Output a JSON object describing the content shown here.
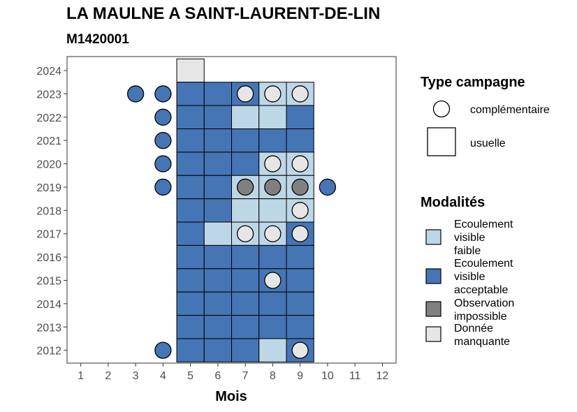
{
  "chart_data": {
    "type": "heatmap",
    "title": "LA MAULNE A SAINT-LAURENT-DE-LIN",
    "subtitle": "M1420001",
    "xlabel": "Mois",
    "ylabel": "",
    "x_ticks": [
      1,
      2,
      3,
      4,
      5,
      6,
      7,
      8,
      9,
      10,
      11,
      12
    ],
    "y_ticks": [
      2012,
      2013,
      2014,
      2015,
      2016,
      2017,
      2018,
      2019,
      2020,
      2021,
      2022,
      2023,
      2024
    ],
    "xlim": [
      0.5,
      12.5
    ],
    "ylim": [
      2011.45,
      2024.6
    ],
    "grid": false,
    "modalites": {
      "faible": {
        "label": "Ecoulement visible faible",
        "color": "#bdd7e7"
      },
      "acceptable": {
        "label": "Ecoulement visible acceptable",
        "color": "#4575b4"
      },
      "impossible": {
        "label": "Observation impossible",
        "color": "#808080"
      },
      "manquante": {
        "label": "Donnée manquante",
        "color": "#e6e6e6"
      }
    },
    "usuelle": [
      {
        "month": 5,
        "year": 2024,
        "modalite": "manquante"
      },
      {
        "month": 5,
        "year": 2023,
        "modalite": "acceptable"
      },
      {
        "month": 6,
        "year": 2023,
        "modalite": "acceptable"
      },
      {
        "month": 7,
        "year": 2023,
        "modalite": "acceptable"
      },
      {
        "month": 8,
        "year": 2023,
        "modalite": "faible"
      },
      {
        "month": 9,
        "year": 2023,
        "modalite": "faible"
      },
      {
        "month": 5,
        "year": 2022,
        "modalite": "acceptable"
      },
      {
        "month": 6,
        "year": 2022,
        "modalite": "acceptable"
      },
      {
        "month": 7,
        "year": 2022,
        "modalite": "faible"
      },
      {
        "month": 8,
        "year": 2022,
        "modalite": "faible"
      },
      {
        "month": 9,
        "year": 2022,
        "modalite": "acceptable"
      },
      {
        "month": 5,
        "year": 2021,
        "modalite": "acceptable"
      },
      {
        "month": 6,
        "year": 2021,
        "modalite": "acceptable"
      },
      {
        "month": 7,
        "year": 2021,
        "modalite": "acceptable"
      },
      {
        "month": 8,
        "year": 2021,
        "modalite": "acceptable"
      },
      {
        "month": 9,
        "year": 2021,
        "modalite": "acceptable"
      },
      {
        "month": 5,
        "year": 2020,
        "modalite": "acceptable"
      },
      {
        "month": 6,
        "year": 2020,
        "modalite": "acceptable"
      },
      {
        "month": 7,
        "year": 2020,
        "modalite": "acceptable"
      },
      {
        "month": 8,
        "year": 2020,
        "modalite": "faible"
      },
      {
        "month": 9,
        "year": 2020,
        "modalite": "faible"
      },
      {
        "month": 5,
        "year": 2019,
        "modalite": "acceptable"
      },
      {
        "month": 6,
        "year": 2019,
        "modalite": "acceptable"
      },
      {
        "month": 7,
        "year": 2019,
        "modalite": "faible"
      },
      {
        "month": 8,
        "year": 2019,
        "modalite": "faible"
      },
      {
        "month": 9,
        "year": 2019,
        "modalite": "faible"
      },
      {
        "month": 5,
        "year": 2018,
        "modalite": "acceptable"
      },
      {
        "month": 6,
        "year": 2018,
        "modalite": "acceptable"
      },
      {
        "month": 7,
        "year": 2018,
        "modalite": "faible"
      },
      {
        "month": 8,
        "year": 2018,
        "modalite": "faible"
      },
      {
        "month": 9,
        "year": 2018,
        "modalite": "faible"
      },
      {
        "month": 5,
        "year": 2017,
        "modalite": "acceptable"
      },
      {
        "month": 6,
        "year": 2017,
        "modalite": "faible"
      },
      {
        "month": 7,
        "year": 2017,
        "modalite": "faible"
      },
      {
        "month": 8,
        "year": 2017,
        "modalite": "faible"
      },
      {
        "month": 9,
        "year": 2017,
        "modalite": "acceptable"
      },
      {
        "month": 5,
        "year": 2016,
        "modalite": "acceptable"
      },
      {
        "month": 6,
        "year": 2016,
        "modalite": "acceptable"
      },
      {
        "month": 7,
        "year": 2016,
        "modalite": "acceptable"
      },
      {
        "month": 8,
        "year": 2016,
        "modalite": "acceptable"
      },
      {
        "month": 9,
        "year": 2016,
        "modalite": "acceptable"
      },
      {
        "month": 5,
        "year": 2015,
        "modalite": "acceptable"
      },
      {
        "month": 6,
        "year": 2015,
        "modalite": "acceptable"
      },
      {
        "month": 7,
        "year": 2015,
        "modalite": "acceptable"
      },
      {
        "month": 8,
        "year": 2015,
        "modalite": "acceptable"
      },
      {
        "month": 9,
        "year": 2015,
        "modalite": "acceptable"
      },
      {
        "month": 5,
        "year": 2014,
        "modalite": "acceptable"
      },
      {
        "month": 6,
        "year": 2014,
        "modalite": "acceptable"
      },
      {
        "month": 7,
        "year": 2014,
        "modalite": "acceptable"
      },
      {
        "month": 8,
        "year": 2014,
        "modalite": "acceptable"
      },
      {
        "month": 9,
        "year": 2014,
        "modalite": "acceptable"
      },
      {
        "month": 5,
        "year": 2013,
        "modalite": "acceptable"
      },
      {
        "month": 6,
        "year": 2013,
        "modalite": "acceptable"
      },
      {
        "month": 7,
        "year": 2013,
        "modalite": "acceptable"
      },
      {
        "month": 8,
        "year": 2013,
        "modalite": "acceptable"
      },
      {
        "month": 9,
        "year": 2013,
        "modalite": "acceptable"
      },
      {
        "month": 5,
        "year": 2012,
        "modalite": "acceptable"
      },
      {
        "month": 6,
        "year": 2012,
        "modalite": "acceptable"
      },
      {
        "month": 7,
        "year": 2012,
        "modalite": "acceptable"
      },
      {
        "month": 8,
        "year": 2012,
        "modalite": "faible"
      },
      {
        "month": 9,
        "year": 2012,
        "modalite": "acceptable"
      }
    ],
    "complementaire": [
      {
        "month": 3,
        "year": 2023,
        "modalite": "acceptable"
      },
      {
        "month": 4,
        "year": 2023,
        "modalite": "acceptable"
      },
      {
        "month": 7,
        "year": 2023,
        "modalite": "manquante"
      },
      {
        "month": 8,
        "year": 2023,
        "modalite": "manquante"
      },
      {
        "month": 9,
        "year": 2023,
        "modalite": "manquante"
      },
      {
        "month": 4,
        "year": 2022,
        "modalite": "acceptable"
      },
      {
        "month": 4,
        "year": 2021,
        "modalite": "acceptable"
      },
      {
        "month": 4,
        "year": 2020,
        "modalite": "acceptable"
      },
      {
        "month": 8,
        "year": 2020,
        "modalite": "manquante"
      },
      {
        "month": 9,
        "year": 2020,
        "modalite": "manquante"
      },
      {
        "month": 4,
        "year": 2019,
        "modalite": "acceptable"
      },
      {
        "month": 7,
        "year": 2019,
        "modalite": "impossible"
      },
      {
        "month": 8,
        "year": 2019,
        "modalite": "impossible"
      },
      {
        "month": 9,
        "year": 2019,
        "modalite": "impossible"
      },
      {
        "month": 10,
        "year": 2019,
        "modalite": "acceptable"
      },
      {
        "month": 9,
        "year": 2018,
        "modalite": "manquante"
      },
      {
        "month": 7,
        "year": 2017,
        "modalite": "manquante"
      },
      {
        "month": 8,
        "year": 2017,
        "modalite": "manquante"
      },
      {
        "month": 9,
        "year": 2017,
        "modalite": "manquante"
      },
      {
        "month": 8,
        "year": 2015,
        "modalite": "manquante"
      },
      {
        "month": 4,
        "year": 2012,
        "modalite": "acceptable"
      },
      {
        "month": 9,
        "year": 2012,
        "modalite": "manquante"
      }
    ],
    "legend": {
      "type_title": "Type campagne",
      "type_items": [
        "complémentaire",
        "usuelle"
      ],
      "modalites_title": "Modalités",
      "modalites_items": [
        {
          "lines": [
            "Ecoulement",
            "visible",
            "faible"
          ],
          "color": "#bdd7e7"
        },
        {
          "lines": [
            "Ecoulement",
            "visible",
            "acceptable"
          ],
          "color": "#4575b4"
        },
        {
          "lines": [
            "Observation",
            "impossible"
          ],
          "color": "#808080"
        },
        {
          "lines": [
            "Donnée",
            "manquante"
          ],
          "color": "#e6e6e6"
        }
      ],
      "placement": "right"
    }
  }
}
